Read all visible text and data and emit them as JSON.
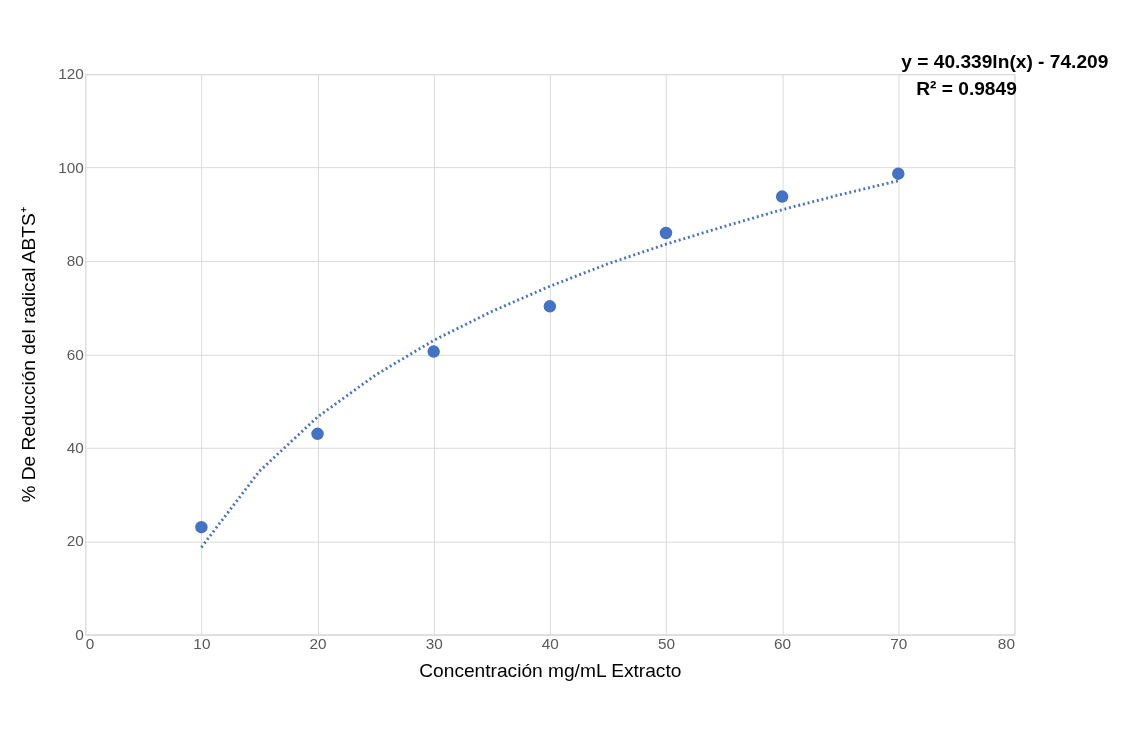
{
  "chart_data": {
    "type": "scatter",
    "xlabel": "Concentración mg/mL Extracto",
    "ylabel": "% De Reducción del radical ABTS⁺",
    "x": [
      10,
      20,
      30,
      40,
      50,
      60,
      70
    ],
    "series": [
      {
        "color": "#4472c4",
        "marker": "circle",
        "values": [
          23,
          43,
          60.6,
          70.3,
          86,
          93.8,
          98.7
        ]
      },
      {
        "type": "line",
        "color": "#4472c4",
        "line_style": "dotted",
        "x": [
          10,
          15,
          20,
          25,
          30,
          35,
          40,
          45,
          50,
          55,
          60,
          65,
          70
        ],
        "values": [
          18.7,
          35.0,
          46.6,
          55.6,
          63.0,
          69.2,
          74.6,
          79.4,
          83.6,
          87.4,
          91.0,
          94.2,
          97.2
        ]
      }
    ],
    "xlim": [
      0,
      80
    ],
    "xticks": [
      0,
      10,
      20,
      30,
      40,
      50,
      60,
      70,
      80
    ],
    "ylim": [
      0,
      120
    ],
    "yticks": [
      0,
      20,
      40,
      60,
      80,
      100,
      120
    ],
    "grid": true,
    "annotations": [
      "y = 40.339ln(x) - 74.209",
      "R² = 0.9849"
    ]
  }
}
